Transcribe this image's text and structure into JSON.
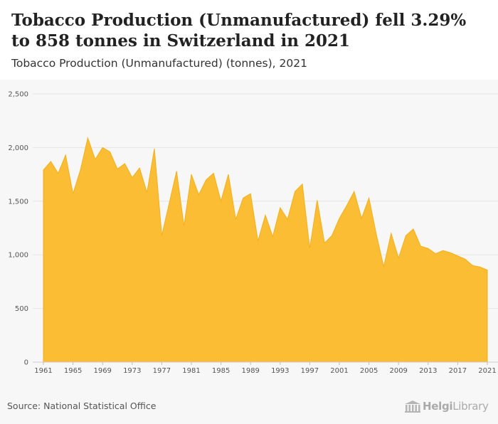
{
  "header": {
    "title": "Tobacco Production (Unmanufactured) fell 3.29% to 858 tonnes in Switzerland in 2021",
    "subtitle": "Tobacco Production (Unmanufactured) (tonnes), 2021"
  },
  "footer": {
    "source": "Source: National Statistical Office",
    "brand_helgi": "Helgi",
    "brand_library": "Library"
  },
  "colors": {
    "area_fill": "#fbbd33",
    "area_stroke": "#f2b01e",
    "grid": "#e6e6e6",
    "background": "#f7f7f7"
  },
  "chart_data": {
    "type": "area",
    "title": "Tobacco Production (Unmanufactured) (tonnes), 2021",
    "xlabel": "",
    "ylabel": "",
    "ylim": [
      0,
      2500
    ],
    "yticks": [
      0,
      500,
      1000,
      1500,
      2000,
      2500
    ],
    "ytick_labels": [
      "0",
      "500",
      "1,000",
      "1,500",
      "2,000",
      "2,500"
    ],
    "xticks": [
      1961,
      1965,
      1969,
      1973,
      1977,
      1981,
      1985,
      1989,
      1993,
      1997,
      2001,
      2005,
      2009,
      2013,
      2017,
      2021
    ],
    "grid": "horizontal",
    "legend": "none",
    "x": [
      1961,
      1962,
      1963,
      1964,
      1965,
      1966,
      1967,
      1968,
      1969,
      1970,
      1971,
      1972,
      1973,
      1974,
      1975,
      1976,
      1977,
      1978,
      1979,
      1980,
      1981,
      1982,
      1983,
      1984,
      1985,
      1986,
      1987,
      1988,
      1989,
      1990,
      1991,
      1992,
      1993,
      1994,
      1995,
      1996,
      1997,
      1998,
      1999,
      2000,
      2001,
      2002,
      2003,
      2004,
      2005,
      2006,
      2007,
      2008,
      2009,
      2010,
      2011,
      2012,
      2013,
      2014,
      2015,
      2016,
      2017,
      2018,
      2019,
      2020,
      2021
    ],
    "values": [
      1790,
      1870,
      1760,
      1930,
      1570,
      1790,
      2090,
      1890,
      2000,
      1960,
      1800,
      1850,
      1720,
      1810,
      1580,
      1990,
      1180,
      1480,
      1780,
      1270,
      1750,
      1560,
      1700,
      1760,
      1500,
      1750,
      1330,
      1530,
      1570,
      1130,
      1370,
      1170,
      1440,
      1330,
      1590,
      1660,
      1060,
      1510,
      1110,
      1180,
      1340,
      1460,
      1590,
      1340,
      1530,
      1190,
      890,
      1200,
      970,
      1180,
      1240,
      1080,
      1060,
      1010,
      1040,
      1020,
      990,
      960,
      900,
      887,
      858
    ]
  }
}
